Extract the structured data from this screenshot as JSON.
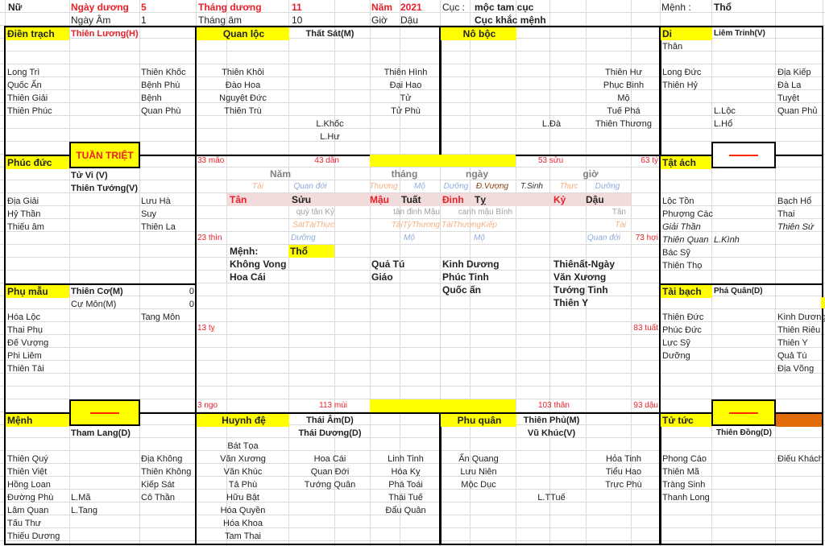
{
  "header": {
    "gender": "Nữ",
    "solar_day_label": "Ngày dương",
    "solar_day": "5",
    "solar_month_label": "Tháng dương",
    "solar_month": "11",
    "year_label": "Năm",
    "year": "2021",
    "cuc_label": "Cục :",
    "cuc": "mộc tam cục",
    "menh_label": "Mệnh :",
    "menh": "Thổ",
    "lunar_day_label": "Ngày Âm",
    "lunar_day": "1",
    "lunar_month_label": "Tháng âm",
    "lunar_month": "10",
    "hour_label": "Giờ",
    "hour": "Dậu",
    "cuc_relation": "Cục khắc mệnh"
  },
  "colors": {
    "palace_label_bg": "#ffff00",
    "main_star_red": "#e8202a",
    "pillar_band": "#f2dcdb",
    "orange_cell": "#e26b0a"
  },
  "markers": {
    "tuan_triet": "TUẦN TRIỆT"
  },
  "palaces": {
    "dien_trach": {
      "name": "Điền trạch",
      "main": [
        "Thiên Lương(H)"
      ],
      "left": [
        "Long Trì",
        "Quốc Ấn",
        "Thiên Giải",
        "Thiên Phúc"
      ],
      "right": [
        "Thiên Khốc",
        "Bệnh Phù",
        "Bệnh",
        "Quan Phù"
      ]
    },
    "quan_loc": {
      "name": "Quan lộc",
      "main": [
        "Thất Sát(M)"
      ],
      "left": [
        "Thiên Khôi",
        "Đào Hoa",
        "Nguyệt Đức",
        "Thiên Trù"
      ],
      "middle": [
        "L.Khốc",
        "L.Hư"
      ],
      "right": [
        "Thiên Hình",
        "Đại Hao",
        "Tử",
        "Tử Phù"
      ]
    },
    "no_boc": {
      "name": "Nô bộc",
      "middle": [
        "L.Đà"
      ],
      "right": [
        "Thiên Hư",
        "Phục Binh",
        "Mộ",
        "Tuế Phá",
        "Thiên Thương"
      ]
    },
    "di": {
      "name": "Di",
      "main": [
        "Liêm Trinh(V)"
      ],
      "than": [
        "Thân"
      ],
      "left": [
        "Long Đức",
        "Thiên Hỷ"
      ],
      "middle": [
        "L.Lộc",
        "L.Hổ"
      ],
      "right": [
        "Địa Kiếp",
        "Đà La",
        "Tuyệt",
        "Quan Phủ"
      ]
    },
    "phuc_duc": {
      "name": "Phúc đức",
      "main": [
        "Tử Vi (V)",
        "Thiên Tướng(V)"
      ],
      "left": [
        "Địa Giải",
        "Hỷ Thần",
        "Thiếu âm"
      ],
      "right": [
        "Lưu Hà",
        "Suy",
        "Thiên La"
      ]
    },
    "tat_ach": {
      "name": "Tật ách",
      "left": [
        "Lộc Tồn",
        "Phượng Các",
        {
          "text": "Giải Thần",
          "italic": true
        },
        {
          "text": "Thiên Quan",
          "italic": true
        },
        "Bác Sỹ",
        "Thiên Thọ"
      ],
      "middle": [
        {
          "text": "L.Kình",
          "italic": true
        }
      ],
      "right": [
        "Bạch Hổ",
        "Thai",
        {
          "text": "Thiên Sứ",
          "italic": true
        }
      ]
    },
    "phu_mau": {
      "name": "Phụ mẫu",
      "main": [
        "Thiên Cơ(M)"
      ],
      "secondary": [
        "Cự Môn(M)"
      ],
      "values": [
        "0",
        "0"
      ],
      "left": [
        "Hóa Lộc",
        "Thai Phụ",
        "Đế Vượng",
        "Phi Liêm",
        "Thiên Tài"
      ],
      "right": [
        "Tang Môn"
      ]
    },
    "tai_bach": {
      "name": "Tài bạch",
      "main": [
        "Phá Quân(D)"
      ],
      "left": [
        "Thiên Đức",
        "Phúc Đức",
        "Lực Sỹ",
        "Dưỡng"
      ],
      "right": [
        "Kình Dương",
        "Thiên Riêu",
        "Thiên Y",
        "Quả Tú",
        "Địa Võng"
      ]
    },
    "menh": {
      "name": "Mệnh",
      "main": [
        "Tham Lang(D)"
      ],
      "left": [
        "Thiên Quý",
        "Thiên Việt",
        "Hồng Loan",
        "Đường Phù",
        "Lâm Quan",
        "Tấu Thư",
        "Thiếu Dương"
      ],
      "middle": [
        "L.Mã",
        "L.Tang"
      ],
      "right": [
        "Địa Không",
        "Thiên Không",
        "Kiếp Sát",
        "Cô Thần"
      ]
    },
    "huynh_de": {
      "name": "Huynh đệ",
      "main": [
        "Thái Âm(D)",
        "Thái Dương(D)"
      ],
      "left": [
        "Bát Tọa",
        "Văn Xương",
        "Văn Khúc",
        "Tả Phù",
        "Hữu Bật",
        "Hóa Quyền",
        "Hóa Khoa",
        "Tam Thai"
      ],
      "middle": [
        "Hoa Cái",
        "Quan Đới",
        "Tướng Quân"
      ],
      "right": [
        "Linh Tinh",
        "Hóa Kỵ",
        "Phá Toái",
        "Thái Tuế",
        "Đẩu Quân"
      ]
    },
    "phu_quan": {
      "name": "Phu quân",
      "main": [
        "Thiên Phủ(M)",
        "Vũ Khúc(V)"
      ],
      "left": [
        "Ấn Quang",
        "Lưu Niên",
        "Mộc Dục"
      ],
      "middle": [
        "L.TTuế"
      ],
      "right": [
        "Hỏa Tinh",
        "Tiểu Hao",
        "Trực Phù"
      ]
    },
    "tu_tuc": {
      "name": "Tử tức",
      "main": [
        "Thiên Đồng(D)"
      ],
      "left": [
        "Phong Cáo",
        "Thiên Mã",
        "Tràng Sinh",
        "Thanh Long"
      ],
      "right": [
        "Điếu Khách"
      ]
    }
  },
  "center": {
    "ages": {
      "mao": "33 mão",
      "dan": "43 dần",
      "suu": "53 sửu",
      "ty_top": "63 tý",
      "thin": "23 thìn",
      "hoi": "73 hợi",
      "ty": "13 tỵ",
      "tuat": "83 tuất",
      "ngo": "3 ngo",
      "mui": "113 mùi",
      "than": "103 thân",
      "dau": "93 dậu"
    },
    "pillar_headers": [
      "Năm",
      "tháng",
      "ngày",
      "giờ"
    ],
    "stages_top": [
      "Tài",
      "Quan đới",
      "Thương",
      "Mộ",
      "Dưỡng",
      "Đ.Vượng",
      "T.Sinh",
      "Thực",
      "Dưỡng"
    ],
    "pillars": [
      "Tân",
      "Sửu",
      "Mậu",
      "Tuất",
      "Đinh",
      "Tỵ",
      "Kỷ",
      "Dậu"
    ],
    "hidden_stems": [
      "quý tân Kỷ",
      "tân đinh Mậu",
      "canh mậu Bính",
      "Tân"
    ],
    "ten_gods": [
      "SátTàiThực",
      "TàiTỳThương",
      "TàiThươngKiếp",
      "Tài"
    ],
    "stages_bottom": [
      "Dưỡng",
      "Mộ",
      "Mộ",
      "Quan đới"
    ],
    "menh_label": "Mệnh:",
    "menh_value": "Thổ",
    "stars": {
      "col1": [
        "Không Vong",
        "Hoa Cái"
      ],
      "col2": [
        "Quả Tú",
        "Giáo"
      ],
      "col3": [
        "Kinh Dương",
        "Phúc Tinh",
        "Quốc ấn"
      ],
      "col4": [
        "Thiênất-Ngày",
        "Văn Xương",
        "Tướng Tinh",
        "Thiên Y"
      ]
    }
  }
}
